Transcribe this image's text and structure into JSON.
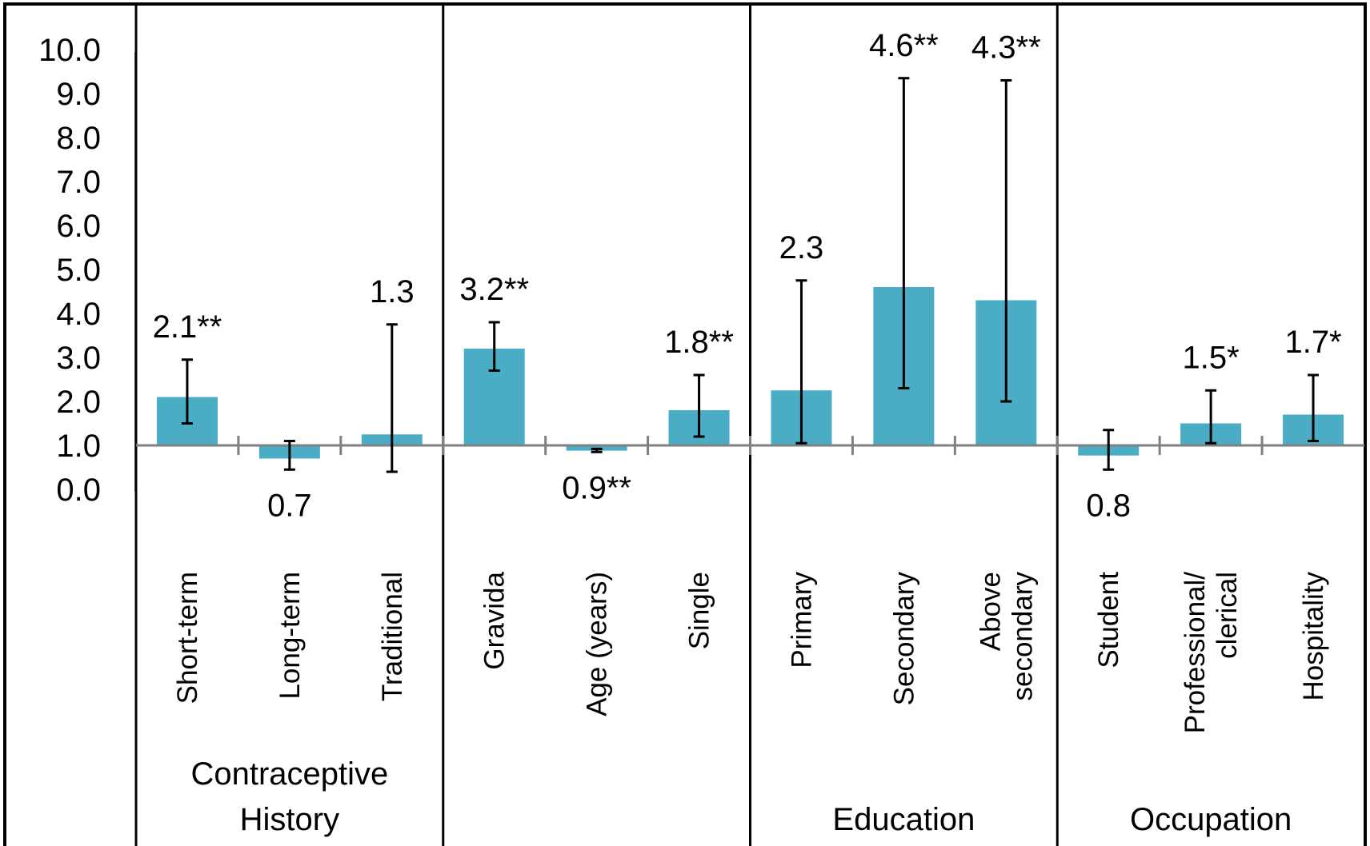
{
  "chart_data": {
    "type": "bar",
    "title": "",
    "xlabel": "",
    "ylabel": "",
    "ylim": [
      0,
      10
    ],
    "baseline": 1.0,
    "yticks": [
      "0.0",
      "1.0",
      "2.0",
      "3.0",
      "4.0",
      "5.0",
      "6.0",
      "7.0",
      "8.0",
      "9.0",
      "10.0"
    ],
    "grid": false,
    "bar_color": "#4BACC6",
    "groups": [
      {
        "name": [
          "Contraceptive",
          "History"
        ],
        "start": 0,
        "end": 3
      },
      {
        "name": [],
        "start": 3,
        "end": 6
      },
      {
        "name": [
          "Education"
        ],
        "start": 6,
        "end": 9
      },
      {
        "name": [
          "Occupation"
        ],
        "start": 9,
        "end": 12
      }
    ],
    "categories": [
      {
        "lines": [
          "Short-term"
        ],
        "value": 2.1,
        "ci_low": 1.5,
        "ci_high": 2.95,
        "label": "2.1**"
      },
      {
        "lines": [
          "Long-term"
        ],
        "value": 0.7,
        "ci_low": 0.45,
        "ci_high": 1.1,
        "label": "0.7"
      },
      {
        "lines": [
          "Traditional"
        ],
        "value": 1.25,
        "ci_low": 0.4,
        "ci_high": 3.75,
        "label": "1.3"
      },
      {
        "lines": [
          "Gravida"
        ],
        "value": 3.2,
        "ci_low": 2.7,
        "ci_high": 3.8,
        "label": "3.2**"
      },
      {
        "lines": [
          "Age (years)"
        ],
        "value": 0.88,
        "ci_low": 0.85,
        "ci_high": 0.92,
        "label": "0.9**"
      },
      {
        "lines": [
          "Single"
        ],
        "value": 1.8,
        "ci_low": 1.2,
        "ci_high": 2.6,
        "label": "1.8**"
      },
      {
        "lines": [
          "Primary"
        ],
        "value": 2.25,
        "ci_low": 1.05,
        "ci_high": 4.75,
        "label": "2.3"
      },
      {
        "lines": [
          "Secondary"
        ],
        "value": 4.6,
        "ci_low": 2.3,
        "ci_high": 9.35,
        "label": "4.6**"
      },
      {
        "lines": [
          "Above",
          "secondary"
        ],
        "value": 4.3,
        "ci_low": 2.0,
        "ci_high": 9.3,
        "label": "4.3**"
      },
      {
        "lines": [
          "Student"
        ],
        "value": 0.77,
        "ci_low": 0.45,
        "ci_high": 1.35,
        "label": "0.8"
      },
      {
        "lines": [
          "Professional/",
          "clerical"
        ],
        "value": 1.5,
        "ci_low": 1.05,
        "ci_high": 2.25,
        "label": "1.5*"
      },
      {
        "lines": [
          "Hospitality"
        ],
        "value": 1.7,
        "ci_low": 1.1,
        "ci_high": 2.6,
        "label": "1.7*"
      }
    ]
  }
}
